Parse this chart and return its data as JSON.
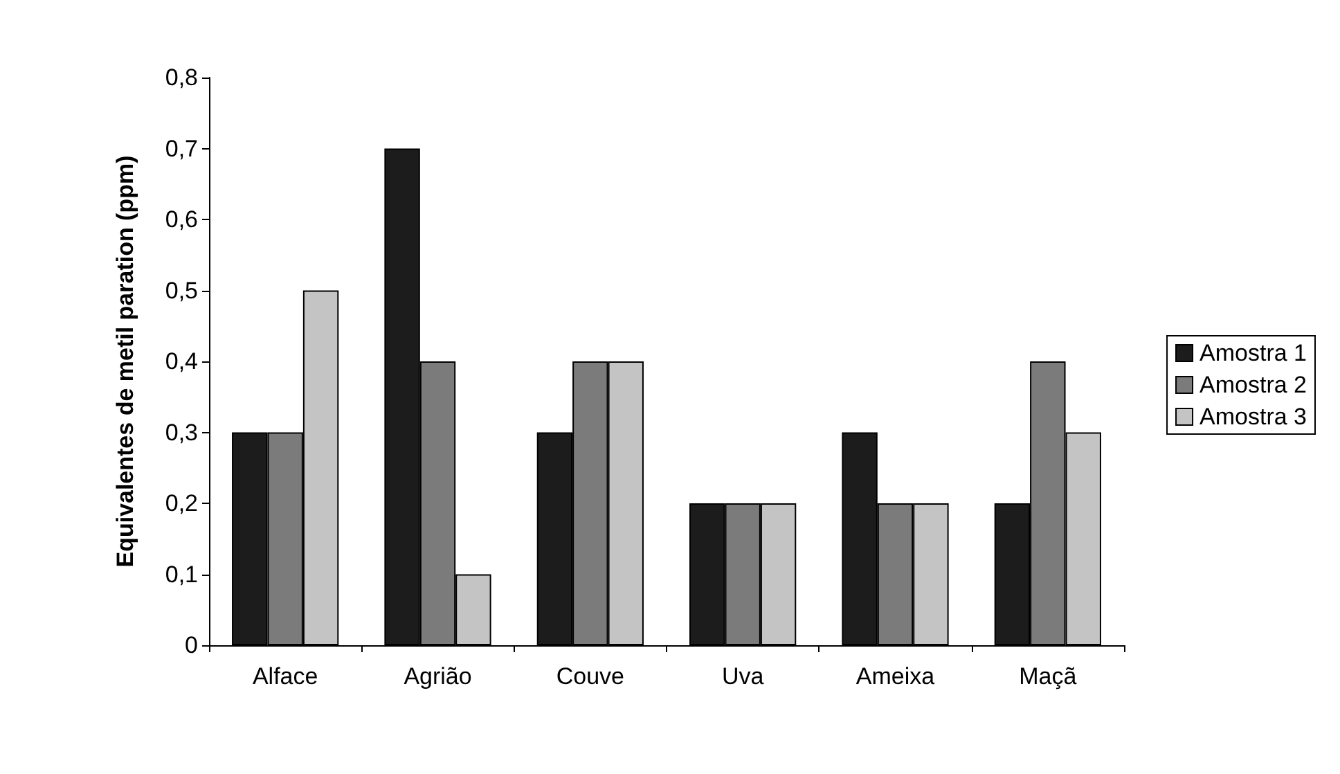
{
  "chart_data": {
    "type": "bar",
    "ylabel": "Equivalentes de metil paration (ppm)",
    "categories": [
      "Alface",
      "Agrião",
      "Couve",
      "Uva",
      "Ameixa",
      "Maçã"
    ],
    "series": [
      {
        "name": "Amostra 1",
        "color": "#1c1c1c",
        "values": [
          0.3,
          0.7,
          0.3,
          0.2,
          0.3,
          0.2
        ]
      },
      {
        "name": "Amostra 2",
        "color": "#7b7b7b",
        "values": [
          0.3,
          0.4,
          0.4,
          0.2,
          0.2,
          0.4
        ]
      },
      {
        "name": "Amostra 3",
        "color": "#c4c4c4",
        "values": [
          0.5,
          0.1,
          0.4,
          0.2,
          0.2,
          0.3
        ]
      }
    ],
    "ylim": [
      0,
      0.8
    ],
    "yticks": [
      0,
      {
        "value": 0.1,
        "label": "0,1"
      },
      {
        "value": 0.2,
        "label": "0,2"
      },
      {
        "value": 0.3,
        "label": "0,3"
      },
      {
        "value": 0.4,
        "label": "0,4"
      },
      {
        "value": 0.5,
        "label": "0,5"
      },
      {
        "value": 0.6,
        "label": "0,6"
      },
      {
        "value": 0.7,
        "label": "0,7"
      },
      {
        "value": 0.8,
        "label": "0,8"
      }
    ],
    "grid": false,
    "legend": "right"
  }
}
